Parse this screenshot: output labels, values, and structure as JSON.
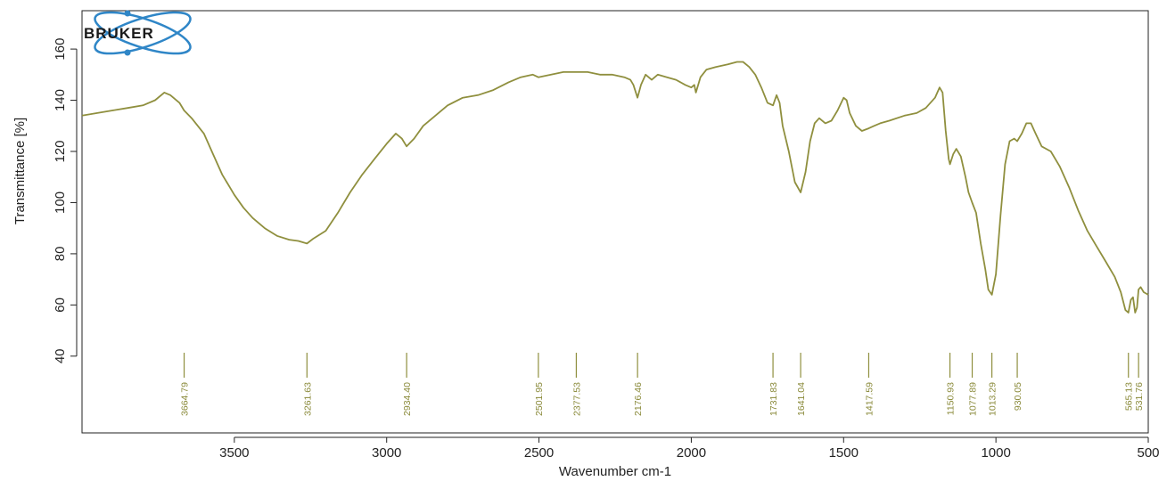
{
  "logo": {
    "text": "BRUKER"
  },
  "chart_data": {
    "type": "line",
    "title": "",
    "xlabel": "Wavenumber cm-1",
    "ylabel": "Transmittance [%]",
    "xlim": [
      4000,
      500
    ],
    "ylim": [
      10,
      175
    ],
    "x_reversed": true,
    "x_ticks": [
      3500,
      3000,
      2500,
      2000,
      1500,
      1000,
      500
    ],
    "x_tick_labels": [
      "3500",
      "3000",
      "2500",
      "2000",
      "1500",
      "1000",
      "500"
    ],
    "y_ticks": [
      40,
      60,
      80,
      100,
      120,
      140,
      160
    ],
    "y_tick_labels": [
      "40",
      "60",
      "80",
      "100",
      "120",
      "140",
      "160"
    ],
    "line_color": "#8f8f3e",
    "grid": false,
    "series": [
      {
        "points": [
          [
            4000,
            134
          ],
          [
            3950,
            135
          ],
          [
            3900,
            136
          ],
          [
            3850,
            137
          ],
          [
            3800,
            138
          ],
          [
            3760,
            140
          ],
          [
            3730,
            143
          ],
          [
            3710,
            142
          ],
          [
            3680,
            139
          ],
          [
            3664.79,
            136
          ],
          [
            3640,
            133
          ],
          [
            3600,
            127
          ],
          [
            3570,
            119
          ],
          [
            3540,
            111
          ],
          [
            3500,
            103
          ],
          [
            3470,
            98
          ],
          [
            3440,
            94
          ],
          [
            3400,
            90
          ],
          [
            3360,
            87
          ],
          [
            3320,
            85.5
          ],
          [
            3290,
            85
          ],
          [
            3261.63,
            84
          ],
          [
            3240,
            86
          ],
          [
            3200,
            89
          ],
          [
            3160,
            96
          ],
          [
            3120,
            104
          ],
          [
            3080,
            111
          ],
          [
            3040,
            117
          ],
          [
            3000,
            123
          ],
          [
            2970,
            127
          ],
          [
            2950,
            125
          ],
          [
            2934.4,
            122
          ],
          [
            2910,
            125
          ],
          [
            2880,
            130
          ],
          [
            2840,
            134
          ],
          [
            2800,
            138
          ],
          [
            2750,
            141
          ],
          [
            2700,
            142
          ],
          [
            2650,
            144
          ],
          [
            2600,
            147
          ],
          [
            2560,
            149
          ],
          [
            2520,
            150
          ],
          [
            2501.95,
            149
          ],
          [
            2460,
            150
          ],
          [
            2420,
            151
          ],
          [
            2377.53,
            151
          ],
          [
            2340,
            151
          ],
          [
            2300,
            150
          ],
          [
            2260,
            150
          ],
          [
            2220,
            149
          ],
          [
            2200,
            148
          ],
          [
            2190,
            146
          ],
          [
            2176.46,
            141
          ],
          [
            2165,
            146
          ],
          [
            2150,
            150
          ],
          [
            2130,
            148
          ],
          [
            2110,
            150
          ],
          [
            2080,
            149
          ],
          [
            2050,
            148
          ],
          [
            2020,
            146
          ],
          [
            2000,
            145
          ],
          [
            1990,
            146
          ],
          [
            1985,
            143
          ],
          [
            1970,
            149
          ],
          [
            1950,
            152
          ],
          [
            1920,
            153
          ],
          [
            1880,
            154
          ],
          [
            1850,
            155
          ],
          [
            1830,
            155
          ],
          [
            1810,
            153
          ],
          [
            1790,
            150
          ],
          [
            1770,
            145
          ],
          [
            1750,
            139
          ],
          [
            1731.83,
            138
          ],
          [
            1720,
            142
          ],
          [
            1710,
            139
          ],
          [
            1700,
            130
          ],
          [
            1680,
            120
          ],
          [
            1660,
            108
          ],
          [
            1641.04,
            104
          ],
          [
            1625,
            112
          ],
          [
            1610,
            124
          ],
          [
            1595,
            131
          ],
          [
            1580,
            133
          ],
          [
            1560,
            131
          ],
          [
            1540,
            132
          ],
          [
            1520,
            136
          ],
          [
            1500,
            141
          ],
          [
            1490,
            140
          ],
          [
            1480,
            135
          ],
          [
            1460,
            130
          ],
          [
            1440,
            128
          ],
          [
            1417.59,
            129
          ],
          [
            1400,
            130
          ],
          [
            1380,
            131
          ],
          [
            1350,
            132
          ],
          [
            1300,
            134
          ],
          [
            1260,
            135
          ],
          [
            1230,
            137
          ],
          [
            1200,
            141
          ],
          [
            1185,
            145
          ],
          [
            1175,
            143
          ],
          [
            1165,
            128
          ],
          [
            1155,
            117
          ],
          [
            1150.93,
            115
          ],
          [
            1140,
            119
          ],
          [
            1130,
            121
          ],
          [
            1115,
            118
          ],
          [
            1100,
            110
          ],
          [
            1090,
            104
          ],
          [
            1077.89,
            100
          ],
          [
            1065,
            96
          ],
          [
            1050,
            84
          ],
          [
            1035,
            74
          ],
          [
            1025,
            66
          ],
          [
            1013.29,
            64
          ],
          [
            1000,
            72
          ],
          [
            985,
            95
          ],
          [
            970,
            115
          ],
          [
            955,
            124
          ],
          [
            940,
            125
          ],
          [
            930.05,
            124
          ],
          [
            915,
            127
          ],
          [
            900,
            131
          ],
          [
            885,
            131
          ],
          [
            870,
            127
          ],
          [
            850,
            122
          ],
          [
            820,
            120
          ],
          [
            790,
            114
          ],
          [
            760,
            106
          ],
          [
            730,
            97
          ],
          [
            700,
            89
          ],
          [
            670,
            83
          ],
          [
            640,
            77
          ],
          [
            610,
            71
          ],
          [
            590,
            65
          ],
          [
            575,
            58
          ],
          [
            565.13,
            57
          ],
          [
            557,
            62
          ],
          [
            550,
            63
          ],
          [
            543,
            57
          ],
          [
            537,
            59
          ],
          [
            531.76,
            66
          ],
          [
            525,
            67
          ],
          [
            515,
            65
          ],
          [
            500,
            64
          ]
        ]
      }
    ],
    "peak_labels": [
      {
        "x": 3664.79,
        "label": "3664.79"
      },
      {
        "x": 3261.63,
        "label": "3261.63"
      },
      {
        "x": 2934.4,
        "label": "2934.40"
      },
      {
        "x": 2501.95,
        "label": "2501.95"
      },
      {
        "x": 2377.53,
        "label": "2377.53"
      },
      {
        "x": 2176.46,
        "label": "2176.46"
      },
      {
        "x": 1731.83,
        "label": "1731.83"
      },
      {
        "x": 1641.04,
        "label": "1641.04"
      },
      {
        "x": 1417.59,
        "label": "1417.59"
      },
      {
        "x": 1150.93,
        "label": "1150.93"
      },
      {
        "x": 1077.89,
        "label": "1077.89"
      },
      {
        "x": 1013.29,
        "label": "1013.29"
      },
      {
        "x": 930.05,
        "label": "930.05"
      },
      {
        "x": 565.13,
        "label": "565.13"
      },
      {
        "x": 531.76,
        "label": "531.76"
      }
    ]
  }
}
